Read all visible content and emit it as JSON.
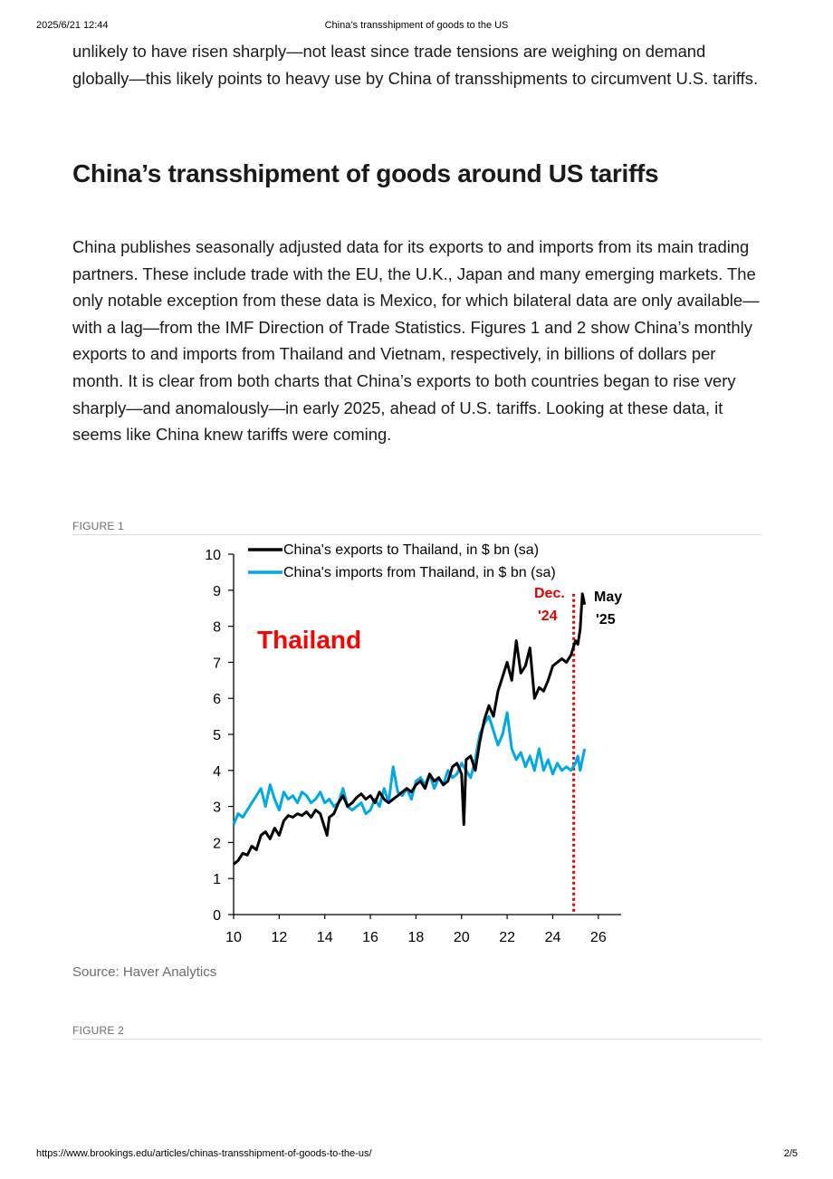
{
  "print_header": {
    "datetime": "2025/6/21 12:44",
    "title": "China’s transshipment of goods to the US"
  },
  "print_footer": {
    "url": "https://www.brookings.edu/articles/chinas-transshipment-of-goods-to-the-us/",
    "page": "2/5"
  },
  "article": {
    "intro_paragraph": "unlikely to have risen sharply—not least since trade tensions are weighing on demand globally—this likely points to heavy use by China of transshipments to circumvent U.S. tariffs.",
    "section_heading": "China’s transshipment of goods around US tariffs",
    "body_paragraph": "China publishes seasonally adjusted data for its exports to and imports from its main trading partners. These include trade with the EU, the U.K., Japan and many emerging markets. The only notable exception from these data is Mexico, for which bilateral data are only available—with a lag—from the IMF Direction of Trade Statistics. Figures 1 and 2 show China’s monthly exports to and imports from Thailand and Vietnam, respectively, in billions of dollars per month. It is clear from both charts that China’s exports to both countries began to rise very sharply—and anomalously—in early 2025, ahead of U.S. tariffs. Looking at these data, it seems like China knew tariffs were coming."
  },
  "figure1": {
    "label": "FIGURE 1",
    "source": "Source: Haver Analytics"
  },
  "figure2": {
    "label": "FIGURE 2"
  },
  "chart_data": {
    "type": "line",
    "title": "",
    "country_label": "Thailand",
    "xlabel": "",
    "ylabel": "",
    "xlim": [
      10,
      27
    ],
    "ylim": [
      0,
      10
    ],
    "x_ticks": [
      10,
      12,
      14,
      16,
      18,
      20,
      22,
      24,
      26
    ],
    "y_ticks": [
      0,
      1,
      2,
      3,
      4,
      5,
      6,
      7,
      8,
      9,
      10
    ],
    "legend_position": "top",
    "vertical_marker": {
      "x": 24.92,
      "label_line1": "Dec.",
      "label_line2": "'24",
      "color": "#e60000"
    },
    "end_annotation": {
      "line1": "May",
      "line2": "'25"
    },
    "series": [
      {
        "name": "China's exports to Thailand, in $ bn (sa)",
        "color": "#000000",
        "x": [
          10.0,
          10.2,
          10.4,
          10.6,
          10.8,
          11.0,
          11.2,
          11.4,
          11.6,
          11.8,
          12.0,
          12.2,
          12.4,
          12.6,
          12.8,
          13.0,
          13.2,
          13.4,
          13.6,
          13.8,
          14.0,
          14.1,
          14.2,
          14.4,
          14.6,
          14.8,
          15.0,
          15.2,
          15.4,
          15.6,
          15.8,
          16.0,
          16.2,
          16.4,
          16.6,
          16.8,
          17.0,
          17.2,
          17.4,
          17.6,
          17.8,
          18.0,
          18.2,
          18.4,
          18.6,
          18.8,
          19.0,
          19.2,
          19.4,
          19.6,
          19.8,
          20.0,
          20.1,
          20.2,
          20.4,
          20.6,
          20.8,
          21.0,
          21.2,
          21.4,
          21.6,
          21.8,
          22.0,
          22.2,
          22.4,
          22.6,
          22.8,
          23.0,
          23.2,
          23.4,
          23.6,
          23.8,
          24.0,
          24.2,
          24.4,
          24.6,
          24.8,
          25.0,
          25.1,
          25.2,
          25.3,
          25.4
        ],
        "y": [
          1.4,
          1.5,
          1.7,
          1.65,
          1.9,
          1.8,
          2.2,
          2.3,
          2.1,
          2.4,
          2.2,
          2.6,
          2.75,
          2.7,
          2.8,
          2.75,
          2.85,
          2.7,
          2.9,
          2.8,
          2.4,
          2.2,
          2.7,
          2.8,
          3.1,
          3.3,
          3.0,
          3.1,
          3.25,
          3.35,
          3.2,
          3.3,
          3.1,
          3.4,
          3.2,
          3.1,
          3.2,
          3.3,
          3.4,
          3.5,
          3.4,
          3.6,
          3.7,
          3.5,
          3.9,
          3.7,
          3.8,
          3.6,
          3.7,
          4.1,
          4.2,
          3.9,
          2.5,
          4.3,
          4.4,
          4.0,
          4.8,
          5.4,
          5.8,
          5.5,
          6.2,
          6.6,
          7.0,
          6.5,
          7.6,
          6.7,
          6.9,
          7.4,
          6.0,
          6.3,
          6.2,
          6.5,
          6.9,
          7.0,
          7.1,
          7.0,
          7.2,
          7.6,
          7.5,
          7.9,
          8.9,
          8.6
        ]
      },
      {
        "name": "China's imports from Thailand, in $ bn (sa)",
        "color": "#00a9e6",
        "x": [
          10.0,
          10.2,
          10.4,
          10.6,
          10.8,
          11.0,
          11.2,
          11.4,
          11.6,
          11.8,
          12.0,
          12.2,
          12.4,
          12.6,
          12.8,
          13.0,
          13.2,
          13.4,
          13.6,
          13.8,
          14.0,
          14.2,
          14.4,
          14.6,
          14.8,
          15.0,
          15.2,
          15.4,
          15.6,
          15.8,
          16.0,
          16.2,
          16.4,
          16.6,
          16.8,
          17.0,
          17.2,
          17.4,
          17.6,
          17.8,
          18.0,
          18.2,
          18.4,
          18.6,
          18.8,
          19.0,
          19.2,
          19.4,
          19.6,
          19.8,
          20.0,
          20.2,
          20.4,
          20.6,
          20.8,
          21.0,
          21.2,
          21.4,
          21.6,
          21.8,
          22.0,
          22.2,
          22.4,
          22.6,
          22.8,
          23.0,
          23.2,
          23.4,
          23.6,
          23.8,
          24.0,
          24.2,
          24.4,
          24.6,
          24.8,
          25.0,
          25.1,
          25.2,
          25.3,
          25.4
        ],
        "y": [
          2.5,
          2.8,
          2.7,
          2.9,
          3.1,
          3.3,
          3.5,
          3.0,
          3.6,
          3.2,
          2.9,
          3.4,
          3.2,
          3.3,
          3.1,
          3.4,
          3.3,
          3.1,
          3.2,
          3.4,
          3.1,
          3.2,
          3.0,
          3.1,
          3.5,
          3.0,
          2.9,
          3.0,
          3.1,
          2.8,
          2.9,
          3.2,
          3.0,
          3.5,
          3.1,
          4.1,
          3.4,
          3.3,
          3.5,
          3.2,
          3.7,
          3.8,
          3.6,
          3.9,
          3.5,
          3.8,
          3.6,
          4.0,
          3.8,
          3.9,
          4.2,
          4.0,
          3.8,
          4.3,
          5.0,
          5.3,
          5.5,
          5.1,
          4.7,
          5.0,
          5.6,
          4.6,
          4.3,
          4.5,
          4.1,
          4.4,
          4.0,
          4.6,
          4.0,
          4.3,
          3.9,
          4.2,
          4.0,
          4.1,
          4.0,
          4.2,
          4.4,
          4.0,
          4.3,
          4.6
        ]
      }
    ]
  }
}
